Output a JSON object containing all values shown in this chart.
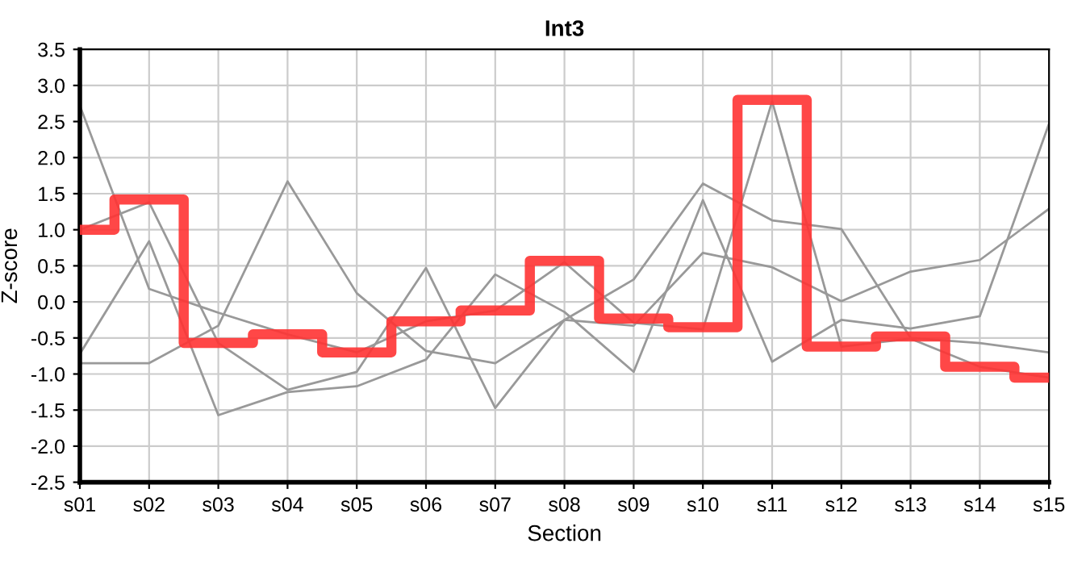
{
  "chart_data": {
    "type": "line",
    "title": "Int3",
    "xlabel": "Section",
    "ylabel": "Z-score",
    "categories": [
      "s01",
      "s02",
      "s03",
      "s04",
      "s05",
      "s06",
      "s07",
      "s08",
      "s09",
      "s10",
      "s11",
      "s12",
      "s13",
      "s14",
      "s15"
    ],
    "series": [
      {
        "color": "#999999",
        "values": [
          2.72,
          0.18,
          -0.15,
          -0.45,
          -0.7,
          -0.27,
          -0.12,
          0.55,
          -0.29,
          -0.38,
          2.78,
          -0.62,
          -0.51,
          -0.9,
          -1.05
        ]
      },
      {
        "color": "#999999",
        "values": [
          1.0,
          1.38,
          -0.57,
          -1.22,
          -0.97,
          0.47,
          -1.47,
          -0.25,
          0.31,
          1.64,
          1.13,
          1.01,
          -0.5,
          -0.57,
          -0.7
        ]
      },
      {
        "color": "#999999",
        "values": [
          -0.72,
          0.84,
          -1.57,
          -1.25,
          -1.17,
          -0.8,
          0.38,
          -0.14,
          -0.97,
          1.41,
          -0.83,
          -0.25,
          -0.37,
          -0.2,
          2.47
        ]
      },
      {
        "color": "#999999",
        "values": [
          -0.85,
          -0.85,
          -0.33,
          1.67,
          0.12,
          -0.68,
          -0.85,
          -0.25,
          -0.33,
          0.68,
          0.48,
          0.01,
          0.42,
          0.58,
          1.29
        ]
      },
      {
        "type": "step",
        "color": "#ff3333",
        "values": [
          1.0,
          1.42,
          -0.57,
          -0.45,
          -0.7,
          -0.27,
          -0.12,
          0.57,
          -0.23,
          -0.35,
          2.8,
          -0.62,
          -0.48,
          -0.9,
          -1.05
        ]
      }
    ],
    "ylim": [
      -2.5,
      3.5
    ],
    "yticks": [
      {
        "value": -2.5,
        "label": "-2.5"
      },
      {
        "value": -2,
        "label": "-2.0"
      },
      {
        "value": -1.5,
        "label": "-1.5"
      },
      {
        "value": -1,
        "label": "-1.0"
      },
      {
        "value": -0.5,
        "label": "-0.5"
      },
      {
        "value": 0,
        "label": "0.0"
      },
      {
        "value": 0.5,
        "label": "0.5"
      },
      {
        "value": 1,
        "label": "1.0"
      },
      {
        "value": 1.5,
        "label": "1.5"
      },
      {
        "value": 2,
        "label": "2.0"
      },
      {
        "value": 2.5,
        "label": "2.5"
      },
      {
        "value": 3,
        "label": "3.0"
      },
      {
        "value": 3.5,
        "label": "3.5"
      }
    ],
    "grid": true,
    "marker": "none",
    "line_style": "solid"
  }
}
